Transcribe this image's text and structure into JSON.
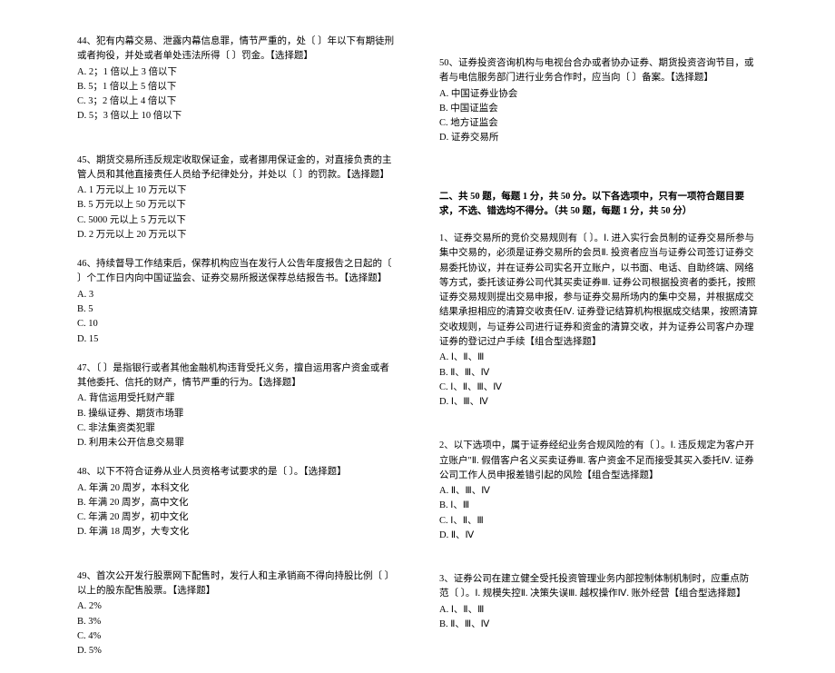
{
  "left": {
    "q44": {
      "text": "44、犯有内幕交易、泄露内幕信息罪，情节严重的，处〔 〕年以下有期徒刑或者拘役，并处或者单处违法所得〔 〕罚金。【选择题】",
      "options": [
        "A. 2；1 倍以上 3 倍以下",
        "B. 5；1 倍以上 5 倍以下",
        "C. 3；2 倍以上 4 倍以下",
        "D. 5；3 倍以上 10 倍以下"
      ]
    },
    "q45": {
      "text": "45、期货交易所违反规定收取保证金，或者挪用保证金的，对直接负责的主管人员和其他直接责任人员给予纪律处分，并处以〔 〕的罚款。【选择题】",
      "options": [
        "A. 1 万元以上 10 万元以下",
        "B. 5 万元以上 50 万元以下",
        "C. 5000 元以上 5 万元以下",
        "D. 2 万元以上 20 万元以下"
      ]
    },
    "q46": {
      "text": "46、持续督导工作结束后，保荐机构应当在发行人公告年度报告之日起的〔 〕个工作日内向中国证监会、证券交易所报送保荐总结报告书。【选择题】",
      "options": [
        "A. 3",
        "B. 5",
        "C. 10",
        "D. 15"
      ]
    },
    "q47": {
      "text": "47、〔 〕是指银行或者其他金融机构违背受托义务，擅自运用客户资金或者其他委托、信托的财产，情节严重的行为。【选择题】",
      "options": [
        "A. 背信运用受托财产罪",
        "B. 操纵证券、期货市场罪",
        "C. 非法集资类犯罪",
        "D. 利用未公开信息交易罪"
      ]
    },
    "q48": {
      "text": "48、以下不符合证券从业人员资格考试要求的是〔 〕。【选择题】",
      "options": [
        "A. 年满 20 周岁，本科文化",
        "B. 年满 20 周岁，高中文化",
        "C. 年满 20 周岁，初中文化",
        "D. 年满 18 周岁，大专文化"
      ]
    },
    "q49": {
      "text": "49、首次公开发行股票网下配售时，发行人和主承销商不得向持股比例〔 〕以上的股东配售股票。【选择题】",
      "options": [
        "A. 2%",
        "B. 3%",
        "C. 4%",
        "D. 5%"
      ]
    }
  },
  "right": {
    "q50": {
      "text": "50、证券投资咨询机构与电视台合办或者协办证券、期货投资咨询节目，或者与电信服务部门进行业务合作时，应当向〔 〕备案。【选择题】",
      "options": [
        "A. 中国证券业协会",
        "B. 中国证监会",
        "C. 地方证监会",
        "D. 证券交易所"
      ]
    },
    "section": "二、共 50 题，每题 1 分，共 50 分。以下各选项中，只有一项符合题目要求，不选、错选均不得分。（共 50 题，每题 1 分，共 50 分）",
    "q1": {
      "text": "1、证券交易所的竞价交易规则有〔 〕。Ⅰ. 进入实行会员制的证券交易所参与集中交易的，必须是证券交易所的会员Ⅱ. 投资者应当与证券公司签订证券交易委托协议，并在证券公司实名开立账户，以书面、电话、自助终端、网络等方式，委托该证券公司代其买卖证券Ⅲ. 证券公司根据投资者的委托，按照证券交易规则提出交易申报，参与证券交易所场内的集中交易，并根据成交结果承担相应的清算交收责任Ⅳ. 证券登记结算机构根据成交结果，按照清算交收规则，与证券公司进行证券和资金的清算交收，并为证券公司客户办理证券的登记过户手续【组合型选择题】",
      "options": [
        "A. Ⅰ、Ⅱ、Ⅲ",
        "B. Ⅱ、Ⅲ、Ⅳ",
        "C. Ⅰ、Ⅱ、Ⅲ、Ⅳ",
        "D. Ⅰ、Ⅲ、Ⅳ"
      ]
    },
    "q2": {
      "text": "2、以下选项中，属于证券经纪业务合规风险的有〔 〕。Ⅰ. 违反规定为客户开立账户\"Ⅱ. 假借客户名义买卖证券Ⅲ. 客户资金不足而接受其买入委托Ⅳ. 证券公司工作人员申报差错引起的风险【组合型选择题】",
      "options": [
        "A. Ⅱ、Ⅲ、Ⅳ",
        "B. Ⅰ、Ⅲ",
        "C. Ⅰ、Ⅱ、Ⅲ",
        "D. Ⅱ、Ⅳ"
      ]
    },
    "q3": {
      "text": "3、证券公司在建立健全受托投资管理业务内部控制体制机制时，应重点防范〔 〕。Ⅰ. 规模失控Ⅱ. 决策失误Ⅲ. 越权操作Ⅳ. 账外经营【组合型选择题】",
      "options": [
        "A. Ⅰ、Ⅱ、Ⅲ",
        "B. Ⅱ、Ⅲ、Ⅳ"
      ]
    }
  }
}
